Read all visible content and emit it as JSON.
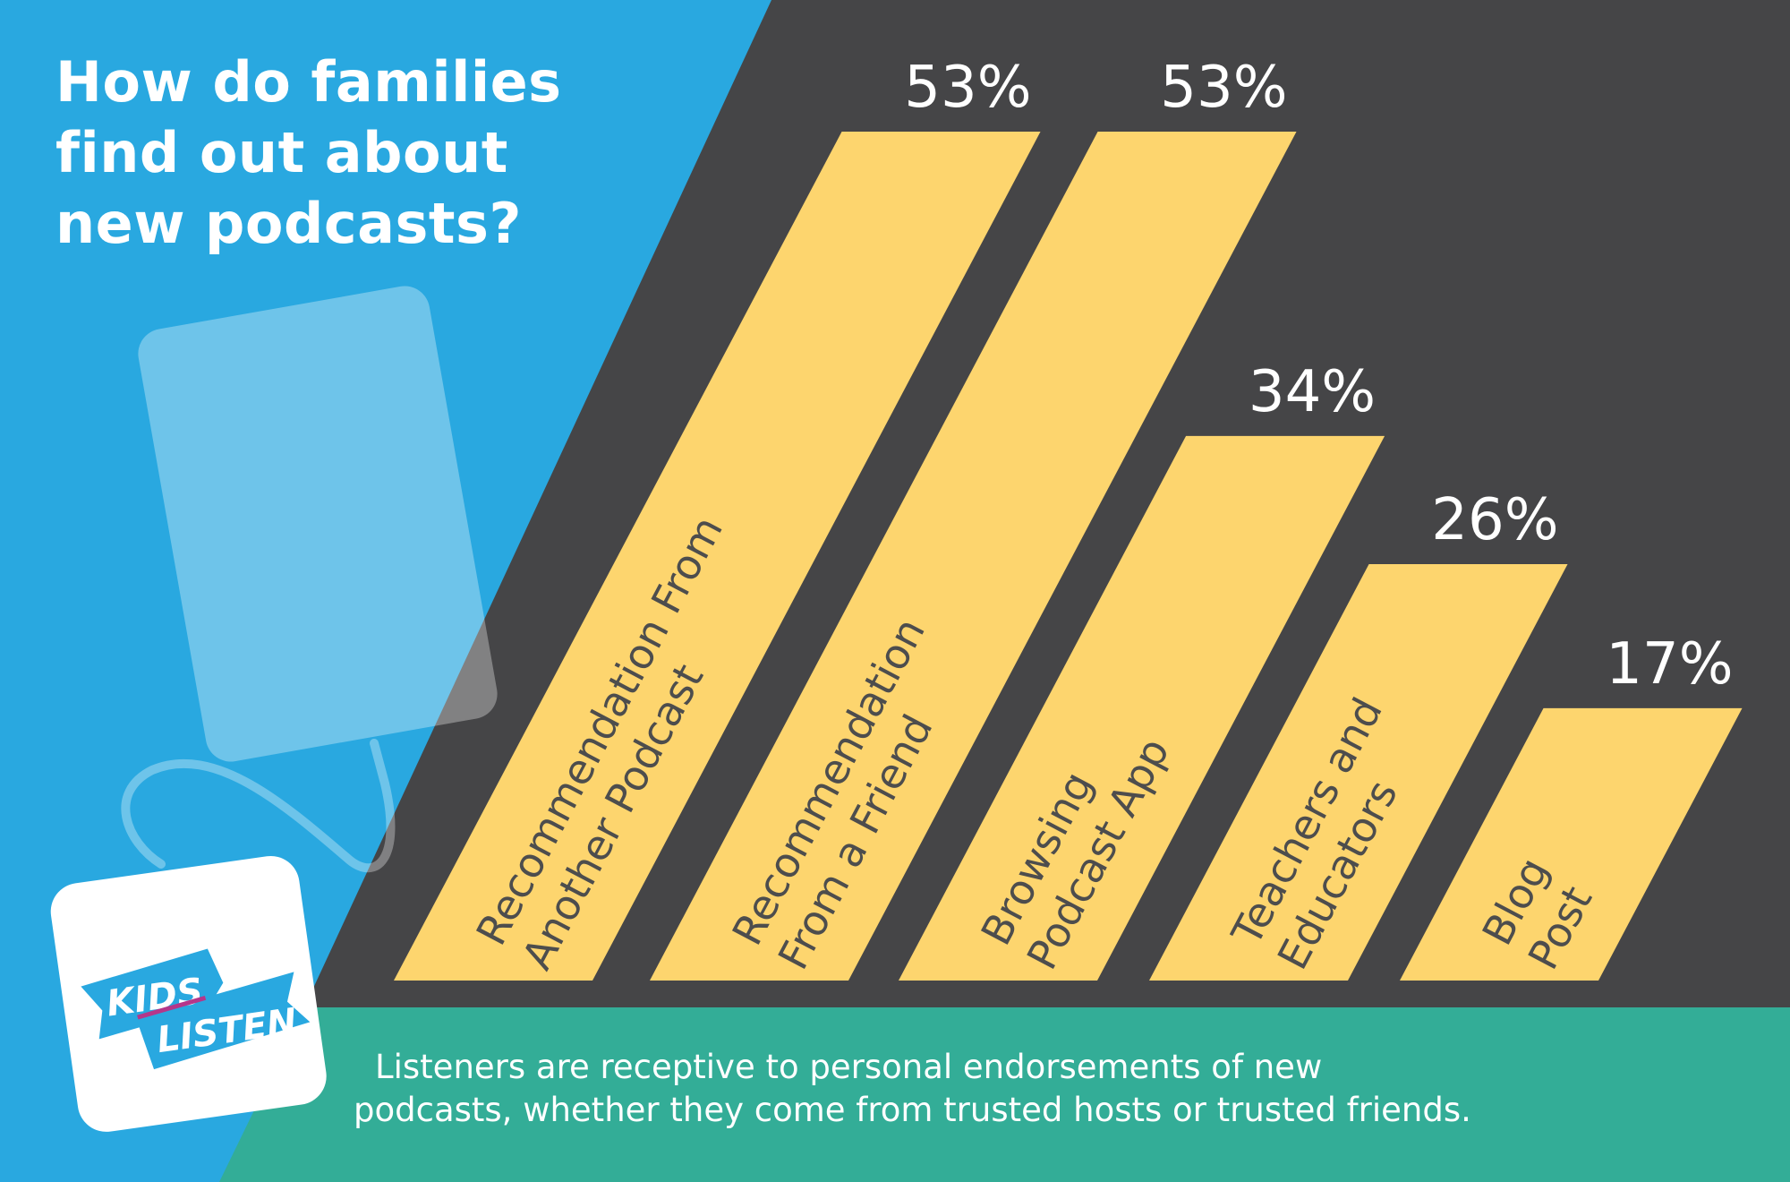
{
  "title_lines": [
    "How do families",
    "find out about",
    "new podcasts?"
  ],
  "caption_lines": [
    "Listeners are receptive to personal endorsements of new",
    "podcasts, whether they come from trusted hosts or trusted friends."
  ],
  "logo": {
    "line1": "KIDS",
    "line2": "LISTEN"
  },
  "colors": {
    "blue": "#29a8e0",
    "dark": "#454547",
    "teal": "#33ad97",
    "bar": "#fdd56e",
    "label": "#4d4d4d"
  },
  "chart_data": {
    "type": "bar",
    "title": "How do families find out about new podcasts?",
    "categories": [
      "Recommendation From Another Podcast",
      "Recommendation From a Friend",
      "Browsing Podcast App",
      "Teachers and Educators",
      "Blog Post"
    ],
    "label_lines": [
      [
        "Recommendation From",
        "Another Podcast"
      ],
      [
        "Recommendation",
        "From a Friend"
      ],
      [
        "Browsing",
        "Podcast App"
      ],
      [
        "Teachers and",
        "Educators"
      ],
      [
        "Blog",
        "Post"
      ]
    ],
    "values": [
      53,
      53,
      34,
      26,
      17
    ],
    "value_labels": [
      "53%",
      "53%",
      "34%",
      "26%",
      "17%"
    ],
    "ylim": [
      0,
      53
    ],
    "xlabel": "",
    "ylabel": ""
  }
}
